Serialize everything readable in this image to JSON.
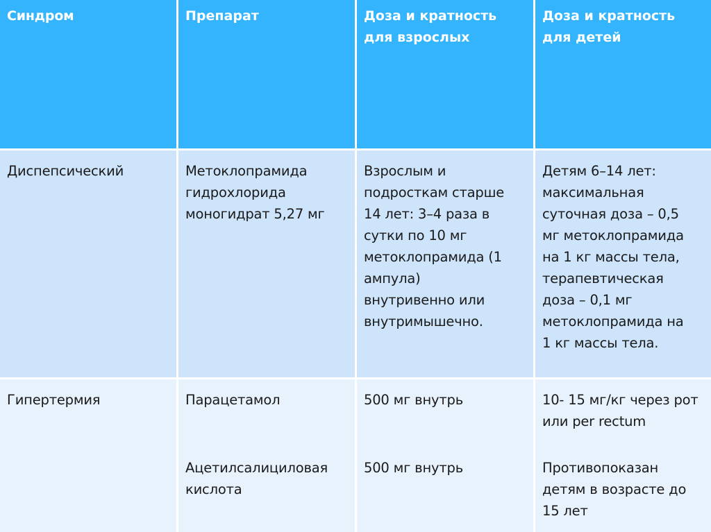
{
  "table": {
    "headers": [
      "Синдром",
      "Препарат",
      "Доза и кратность\nдля взрослых",
      "Доза и кратность\nдля детей"
    ],
    "rows": [
      {
        "syndrome": "Диспепсический",
        "drugs": [
          "Метоклопрамида\nгидрохлорида\nмоногидрат 5,27 мг"
        ],
        "adult": [
          "Взрослым и\nподросткам старше\n14 лет: 3–4 раза в\nсутки по 10 мг\nметоклопрамида (1\nампула)\nвнутривенно или\nвнутримышечно."
        ],
        "child": [
          "Детям 6–14 лет:\nмаксимальная\nсуточная доза – 0,5\nмг метоклопрамида\nна 1 кг массы тела,\nтерапевтическая\nдоза – 0,1 мг\nметоклопрамида на\n1 кг массы тела."
        ]
      },
      {
        "syndrome": "Гипертермия",
        "drugs": [
          "Парацетамол",
          "Ацетилсалициловая\nкислота"
        ],
        "adult": [
          "500 мг внутрь",
          "500 мг внутрь"
        ],
        "child": [
          "10- 15 мг/кг через рот\nили per rectum",
          "Противопоказан\nдетям в возрасте до\n15 лет"
        ]
      }
    ]
  },
  "colors": {
    "header": "#33b4fd",
    "row_odd": "#cde4fb",
    "row_even": "#e8f2fd",
    "grid": "#ffffff"
  }
}
